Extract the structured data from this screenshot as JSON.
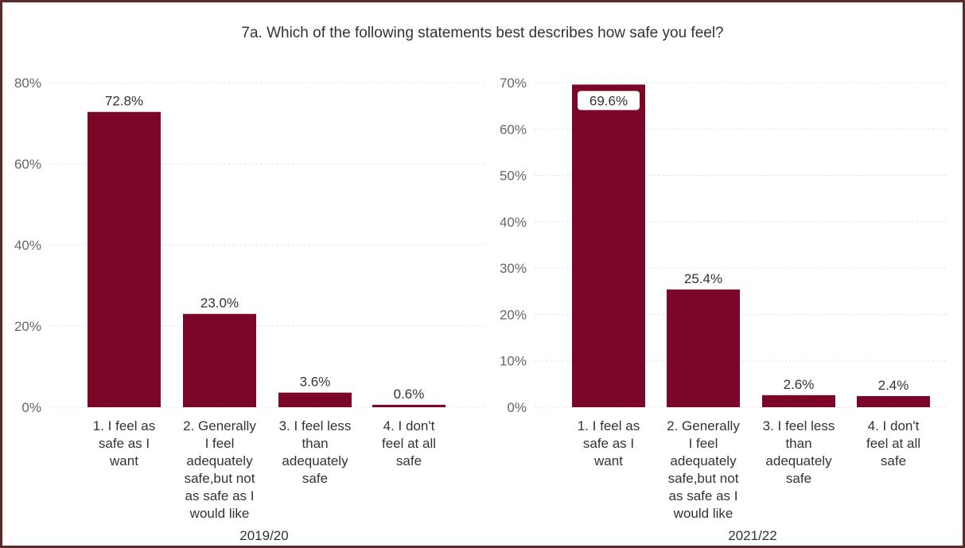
{
  "title": "7a. Which of the following statements best describes how safe you feel?",
  "colors": {
    "bar": "#7b0628",
    "grid": "#dddddd",
    "frame": "#5a2a2a"
  },
  "chart_data": [
    {
      "type": "bar",
      "panel_label": "2019/20",
      "categories": [
        [
          "1. I feel as",
          "safe as I",
          "want"
        ],
        [
          "2. Generally",
          "I feel",
          "adequately",
          "safe,but not",
          "as safe as I",
          "would like"
        ],
        [
          "3. I feel less",
          "than",
          "adequately",
          "safe"
        ],
        [
          "4. I don't",
          "feel at all",
          "safe"
        ]
      ],
      "values": [
        72.8,
        23.0,
        3.6,
        0.6
      ],
      "data_labels": [
        "72.8%",
        "23.0%",
        "3.6%",
        "0.6%"
      ],
      "highlight_label_index": -1,
      "yticks": [
        0,
        20,
        40,
        60,
        80
      ],
      "ytick_labels": [
        "0%",
        "20%",
        "40%",
        "60%",
        "80%"
      ],
      "ylim": [
        0,
        80
      ],
      "grid": true
    },
    {
      "type": "bar",
      "panel_label": "2021/22",
      "categories": [
        [
          "1. I feel as",
          "safe as I",
          "want"
        ],
        [
          "2. Generally",
          "I feel",
          "adequately",
          "safe,but not",
          "as safe as I",
          "would like"
        ],
        [
          "3. I feel less",
          "than",
          "adequately",
          "safe"
        ],
        [
          "4. I don't",
          "feel at all",
          "safe"
        ]
      ],
      "values": [
        69.6,
        25.4,
        2.6,
        2.4
      ],
      "data_labels": [
        "69.6%",
        "25.4%",
        "2.6%",
        "2.4%"
      ],
      "highlight_label_index": 0,
      "yticks": [
        0,
        10,
        20,
        30,
        40,
        50,
        60,
        70
      ],
      "ytick_labels": [
        "0%",
        "10%",
        "20%",
        "30%",
        "40%",
        "50%",
        "60%",
        "70%"
      ],
      "ylim": [
        0,
        70
      ],
      "grid": true
    }
  ]
}
